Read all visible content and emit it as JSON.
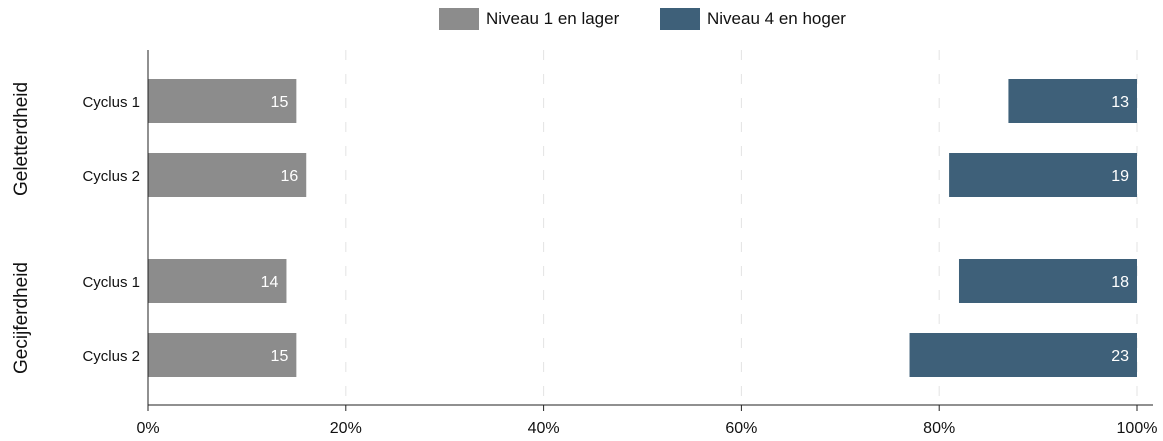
{
  "chart_data": {
    "type": "bar",
    "orientation": "horizontal",
    "stacked_diverging": true,
    "groups": [
      "Geletterdheid",
      "Gecijferdheid"
    ],
    "categories": [
      "Cyclus 1",
      "Cyclus 2"
    ],
    "series": [
      {
        "name": "Niveau 1 en lager",
        "color": "#8c8c8c",
        "anchor": "left",
        "values": [
          [
            15,
            16
          ],
          [
            14,
            15
          ]
        ],
        "labels": [
          [
            "15",
            "16"
          ],
          [
            "14",
            "15"
          ]
        ]
      },
      {
        "name": "Niveau 4 en hoger",
        "color": "#3e6079",
        "anchor": "right",
        "values": [
          [
            13,
            19
          ],
          [
            18,
            23
          ]
        ],
        "labels": [
          [
            "13",
            "19"
          ],
          [
            "18",
            "23"
          ]
        ]
      }
    ],
    "xlim": [
      0,
      100
    ],
    "xticks": [
      0,
      20,
      40,
      60,
      80,
      100
    ],
    "xtick_labels": [
      "0%",
      "20%",
      "40%",
      "60%",
      "80%",
      "100%"
    ],
    "grid": "vertical dashed",
    "legend_position": "top-center"
  }
}
